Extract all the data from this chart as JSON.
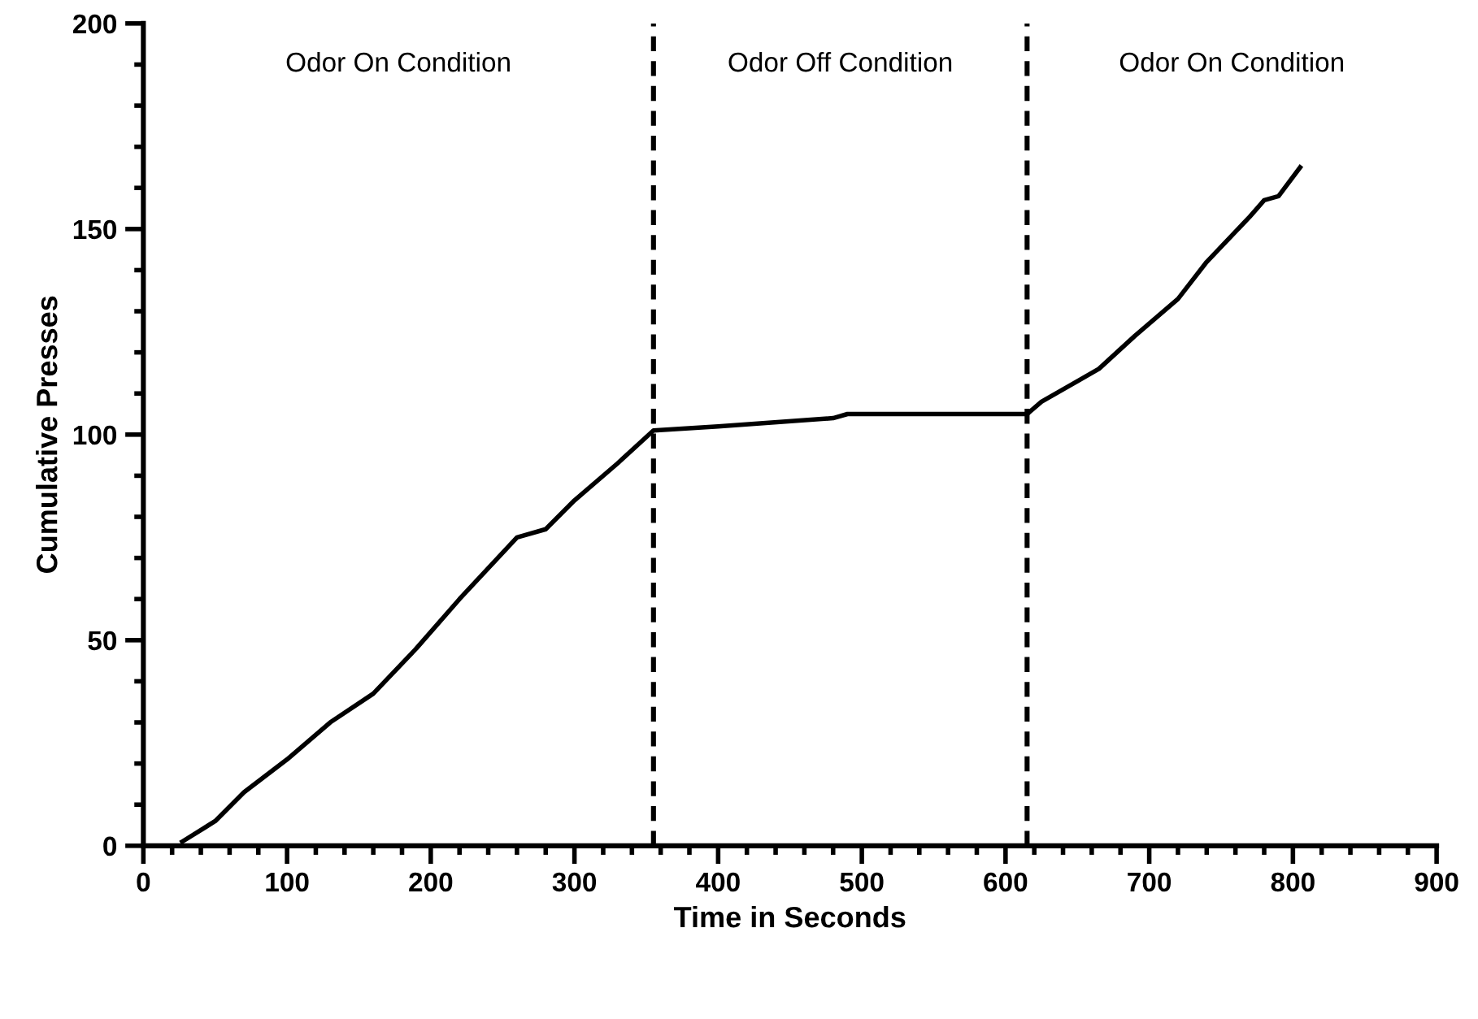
{
  "chart_data": {
    "type": "line",
    "xlabel": "Time in Seconds",
    "ylabel": "Cumulative Presses",
    "x": [
      27,
      50,
      70,
      100,
      130,
      160,
      190,
      220,
      260,
      280,
      300,
      330,
      355,
      400,
      480,
      490,
      615,
      625,
      650,
      665,
      690,
      720,
      740,
      770,
      780,
      790,
      805
    ],
    "series": [
      {
        "color": "#000000",
        "values": [
          1,
          6,
          13,
          21,
          30,
          37,
          48,
          60,
          75,
          77,
          84,
          93,
          101,
          102,
          104,
          105,
          105,
          108,
          113,
          116,
          124,
          133,
          142,
          153,
          157,
          158,
          165
        ]
      }
    ],
    "xlim": [
      0,
      900
    ],
    "ylim": [
      0,
      200
    ],
    "xticks": [
      0,
      {
        "value": 20,
        "label": null
      },
      {
        "value": 40,
        "label": null
      },
      {
        "value": 60,
        "label": null
      },
      {
        "value": 80,
        "label": null
      },
      100,
      {
        "value": 120,
        "label": null
      },
      {
        "value": 140,
        "label": null
      },
      {
        "value": 160,
        "label": null
      },
      {
        "value": 180,
        "label": null
      },
      200,
      {
        "value": 220,
        "label": null
      },
      {
        "value": 240,
        "label": null
      },
      {
        "value": 260,
        "label": null
      },
      {
        "value": 280,
        "label": null
      },
      300,
      {
        "value": 320,
        "label": null
      },
      {
        "value": 340,
        "label": null
      },
      {
        "value": 360,
        "label": null
      },
      {
        "value": 380,
        "label": null
      },
      400,
      {
        "value": 420,
        "label": null
      },
      {
        "value": 440,
        "label": null
      },
      {
        "value": 460,
        "label": null
      },
      {
        "value": 480,
        "label": null
      },
      500,
      {
        "value": 520,
        "label": null
      },
      {
        "value": 540,
        "label": null
      },
      {
        "value": 560,
        "label": null
      },
      {
        "value": 580,
        "label": null
      },
      600,
      {
        "value": 620,
        "label": null
      },
      {
        "value": 640,
        "label": null
      },
      {
        "value": 660,
        "label": null
      },
      {
        "value": 680,
        "label": null
      },
      700,
      {
        "value": 720,
        "label": null
      },
      {
        "value": 740,
        "label": null
      },
      {
        "value": 760,
        "label": null
      },
      {
        "value": 780,
        "label": null
      },
      800,
      {
        "value": 820,
        "label": null
      },
      {
        "value": 840,
        "label": null
      },
      {
        "value": 860,
        "label": null
      },
      {
        "value": 880,
        "label": null
      },
      900
    ],
    "yticks": [
      0,
      {
        "value": 10,
        "label": null
      },
      {
        "value": 20,
        "label": null
      },
      {
        "value": 30,
        "label": null
      },
      {
        "value": 40,
        "label": null
      },
      50,
      {
        "value": 60,
        "label": null
      },
      {
        "value": 70,
        "label": null
      },
      {
        "value": 80,
        "label": null
      },
      {
        "value": 90,
        "label": null
      },
      100,
      {
        "value": 110,
        "label": null
      },
      {
        "value": 120,
        "label": null
      },
      {
        "value": 130,
        "label": null
      },
      {
        "value": 140,
        "label": null
      },
      150,
      {
        "value": 160,
        "label": null
      },
      {
        "value": 170,
        "label": null
      },
      {
        "value": 180,
        "label": null
      },
      {
        "value": 190,
        "label": null
      },
      200
    ],
    "ref_lines": [
      {
        "axis": "x",
        "value": 355,
        "color": "#000000",
        "line_style": "dashed"
      },
      {
        "axis": "x",
        "value": 615,
        "color": "#000000",
        "line_style": "dashed"
      }
    ],
    "annotations": [
      "Odor On Condition",
      "Odor Off Condition",
      "Odor On Condition"
    ],
    "grid": false,
    "legend": false,
    "marker": "none",
    "line_style": "solid"
  }
}
